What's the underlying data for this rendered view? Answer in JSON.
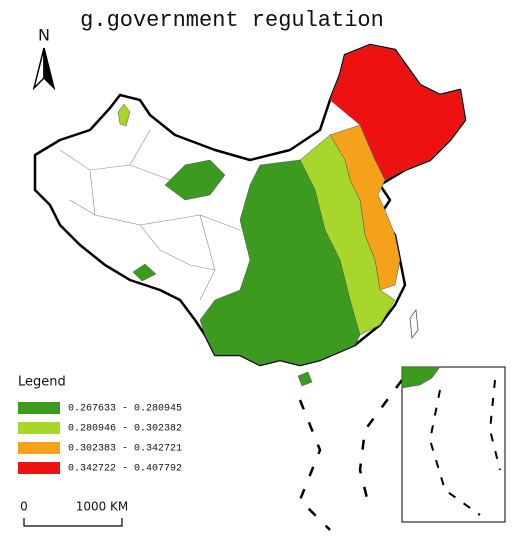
{
  "title": "g.government regulation",
  "north_arrow": "N",
  "legend": {
    "title": "Legend",
    "items": [
      {
        "label": "0.267633 - 0.280945",
        "color": "#3c9a1f"
      },
      {
        "label": "0.280946 - 0.302382",
        "color": "#a8d72c"
      },
      {
        "label": "0.302383 - 0.342721",
        "color": "#f5a21a"
      },
      {
        "label": "0.342722 - 0.407792",
        "color": "#ee1111"
      }
    ]
  },
  "scale_bar": {
    "labels": [
      "0",
      "1000 KM"
    ]
  }
}
